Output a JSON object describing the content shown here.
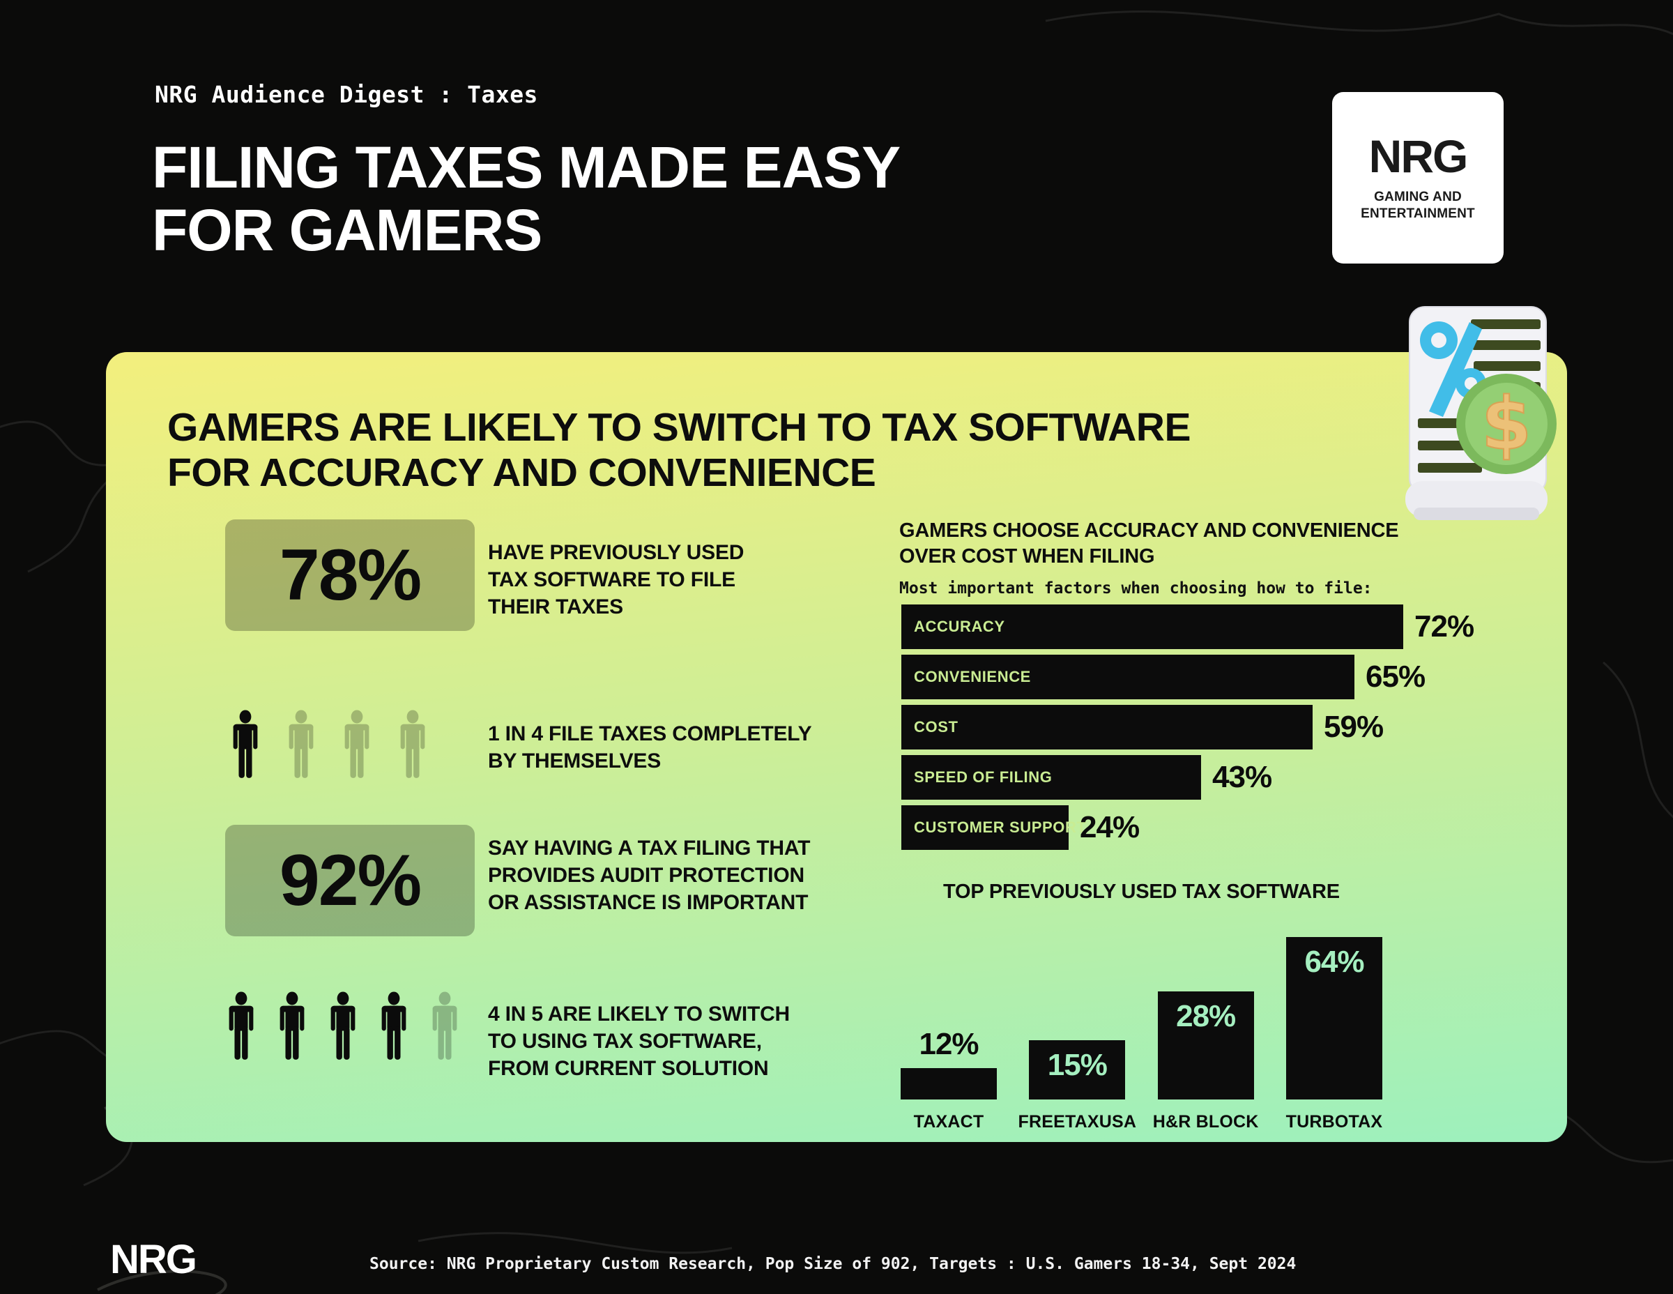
{
  "page": {
    "eyebrow": "NRG Audience Digest : Taxes",
    "title": [
      "FILING TAXES MADE EASY",
      "FOR GAMERS"
    ],
    "brand_badge": {
      "logo": "NRG",
      "tagline": [
        "GAMING AND",
        "ENTERTAINMENT"
      ]
    }
  },
  "card": {
    "heading": [
      "GAMERS ARE LIKELY TO SWITCH TO TAX SOFTWARE",
      "FOR ACCURACY AND CONVENIENCE"
    ],
    "stats": [
      {
        "kind": "badge",
        "value": "78%",
        "label": [
          "HAVE PREVIOUSLY USED",
          "TAX SOFTWARE TO FILE",
          "THEIR TAXES"
        ]
      },
      {
        "kind": "people",
        "filled": 1,
        "total": 4,
        "label": [
          "1 IN 4 FILE TAXES COMPLETELY",
          "BY THEMSELVES"
        ]
      },
      {
        "kind": "badge",
        "value": "92%",
        "label": [
          "SAY HAVING A TAX FILING THAT",
          "PROVIDES AUDIT PROTECTION",
          "OR ASSISTANCE IS IMPORTANT"
        ]
      },
      {
        "kind": "people",
        "filled": 4,
        "total": 5,
        "label": [
          "4 IN 5 ARE LIKELY TO SWITCH",
          "TO USING TAX SOFTWARE,",
          "FROM CURRENT SOLUTION"
        ]
      }
    ],
    "factors_heading": [
      "GAMERS CHOOSE ACCURACY AND CONVENIENCE",
      "OVER COST WHEN FILING"
    ],
    "factors_subheading": "Most important factors when choosing how to file:"
  },
  "chart_data": [
    {
      "type": "bar",
      "orientation": "horizontal",
      "title": "Most important factors when choosing how to file:",
      "categories": [
        "ACCURACY",
        "CONVENIENCE",
        "COST",
        "SPEED OF FILING",
        "CUSTOMER SUPPORT"
      ],
      "values": [
        72,
        65,
        59,
        43,
        24
      ],
      "value_labels": [
        "72%",
        "65%",
        "59%",
        "43%",
        "24%"
      ],
      "unit": "%",
      "xlim": [
        0,
        100
      ],
      "grid": false,
      "legend": "none"
    },
    {
      "type": "bar",
      "orientation": "vertical",
      "title": "TOP PREVIOUSLY USED TAX SOFTWARE",
      "categories": [
        "TAXACT",
        "FREETAXUSA",
        "H&R BLOCK",
        "TURBOTAX"
      ],
      "values": [
        12,
        15,
        28,
        64
      ],
      "value_labels": [
        "12%",
        "15%",
        "28%",
        "64%"
      ],
      "unit": "%",
      "grid": false,
      "legend": "none"
    }
  ],
  "footer": {
    "logo": "NRG",
    "source": "Source: NRG Proprietary Custom Research, Pop Size of 902, Targets : U.S. Gamers 18-34, Sept 2024"
  },
  "colors": {
    "grad_top": "#f3ef7d",
    "grad_mid": "#cdee97",
    "grad_bottom": "#9df0bd",
    "bar_black": "#0c0c0c",
    "hbar_label": "#c9ec93",
    "vbar_value": "#a5efc0",
    "badge_bg": "rgba(0,0,0,0.25)",
    "person_faded": "rgba(0,0,0,0.23)",
    "person_filled": "#0b0b0b"
  }
}
